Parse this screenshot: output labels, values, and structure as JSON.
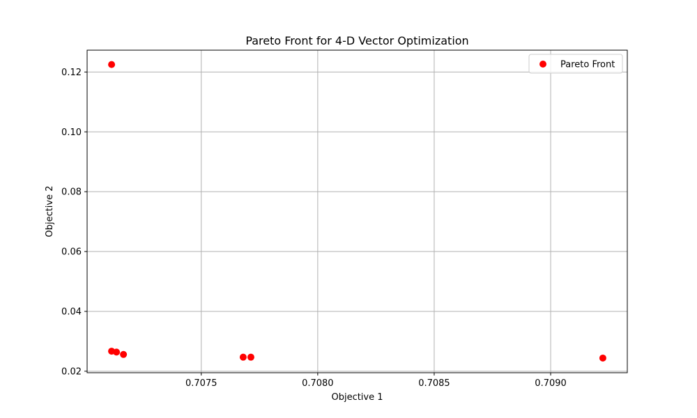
{
  "chart_data": {
    "type": "scatter",
    "title": "Pareto Front for 4-D Vector Optimization",
    "xlabel": "Objective 1",
    "ylabel": "Objective 2",
    "xlim": [
      0.70701,
      0.709329
    ],
    "ylim": [
      0.0195,
      0.1273
    ],
    "xticks": [
      0.7075,
      0.708,
      0.7085,
      0.709
    ],
    "xtick_labels": [
      "0.7075",
      "0.7080",
      "0.7085",
      "0.7090"
    ],
    "yticks": [
      0.02,
      0.04,
      0.06,
      0.08,
      0.1,
      0.12
    ],
    "ytick_labels": [
      "0.02",
      "0.04",
      "0.06",
      "0.08",
      "0.10",
      "0.12"
    ],
    "grid": true,
    "legend_position": "top-right",
    "series": [
      {
        "name": "Pareto Front",
        "color": "#ff0000",
        "points": [
          {
            "x": 0.707115,
            "y": 0.1225
          },
          {
            "x": 0.707115,
            "y": 0.0267
          },
          {
            "x": 0.707136,
            "y": 0.0264
          },
          {
            "x": 0.707166,
            "y": 0.0256
          },
          {
            "x": 0.70768,
            "y": 0.0247
          },
          {
            "x": 0.707713,
            "y": 0.0247
          },
          {
            "x": 0.709224,
            "y": 0.0244
          }
        ]
      }
    ]
  }
}
